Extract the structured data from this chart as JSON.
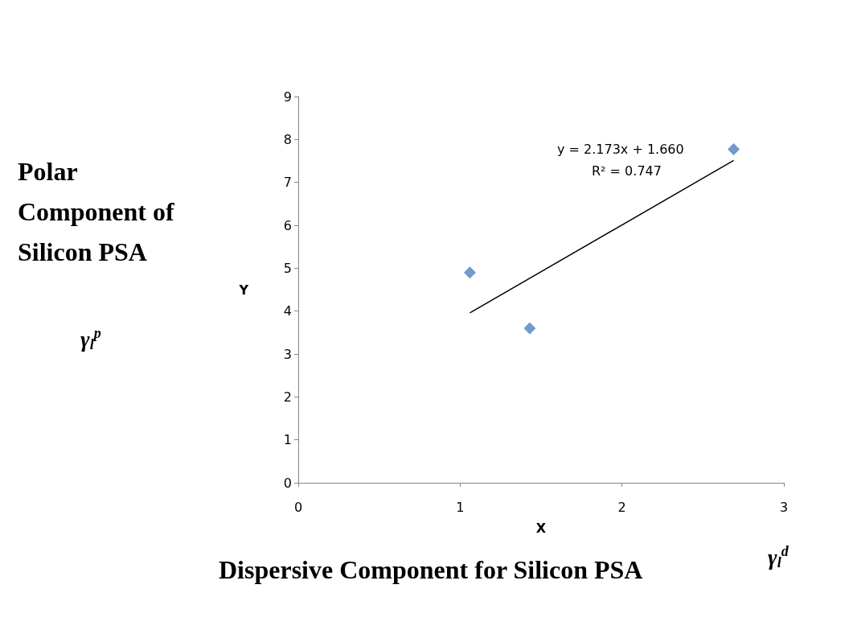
{
  "chart_data": {
    "type": "scatter",
    "xlabel": "X",
    "ylabel": "Y",
    "series": [
      {
        "color": "#4f81bd",
        "x": [
          1.06,
          1.43,
          2.69
        ],
        "values": [
          4.9,
          3.6,
          7.77
        ],
        "marker": "diamond"
      },
      {
        "type": "line",
        "color": "#000000",
        "x": [
          1.06,
          2.69
        ],
        "values": [
          3.96,
          7.51
        ],
        "marker": "none",
        "line_style": "solid"
      }
    ],
    "xlim": [
      0,
      3
    ],
    "xticks": [
      0,
      1,
      2,
      3
    ],
    "ylim": [
      0,
      9
    ],
    "yticks": [
      0,
      1,
      2,
      3,
      4,
      5,
      6,
      7,
      8,
      9
    ],
    "grid": false,
    "annotations": [
      "y = 2.173x + 1.660",
      "R² = 0.747",
      "Polar Component of Silicon PSA",
      "γ$_{l}$$^{p}$",
      "Dispersive Component for Silicon PSA",
      "γ$_{l}$$^{d}$"
    ]
  }
}
